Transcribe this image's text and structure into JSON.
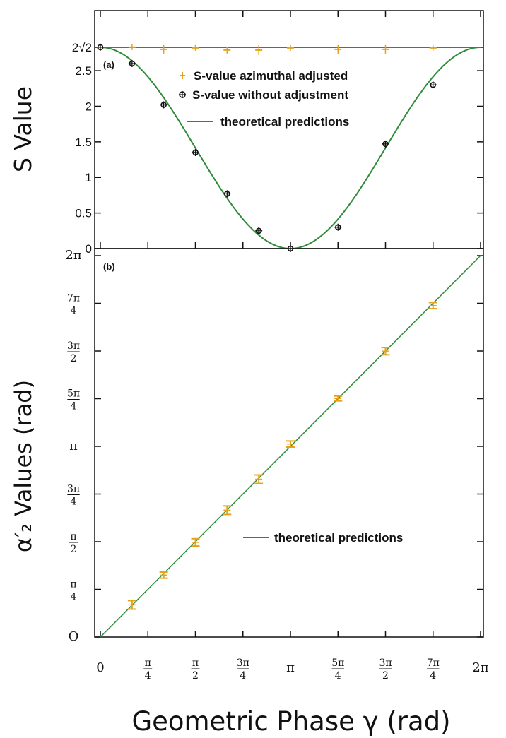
{
  "colors": {
    "theory": "#2e8b3a",
    "adjusted": "#e8a21a",
    "unadjusted": "#111111",
    "axis": "#111111"
  },
  "xlabel": "Geometric Phase γ (rad)",
  "x_tick_labels": [
    {
      "num": "0",
      "den": ""
    },
    {
      "num": "π",
      "den": "4"
    },
    {
      "num": "π",
      "den": "2"
    },
    {
      "num": "3π",
      "den": "4"
    },
    {
      "num": "π",
      "den": ""
    },
    {
      "num": "5π",
      "den": "4"
    },
    {
      "num": "3π",
      "den": "2"
    },
    {
      "num": "7π",
      "den": "4"
    },
    {
      "num": "2π",
      "den": ""
    }
  ],
  "chart_data": [
    {
      "type": "scatter",
      "panel_label": "(a)",
      "ylabel": "S  Value",
      "xlim": [
        0,
        6.2832
      ],
      "ylim": [
        0,
        2.8284
      ],
      "y_tick_labels": [
        "0",
        "0.5",
        "1",
        "1.5",
        "2",
        "2.5",
        "2√2"
      ],
      "y_tick_values": [
        0,
        0.5,
        1,
        1.5,
        2,
        2.5,
        2.8284
      ],
      "legend": {
        "position": "top-center",
        "entries": [
          {
            "marker": "plus",
            "label": "S-value  azimuthal adjusted"
          },
          {
            "marker": "circle-plus",
            "label": "S-value without adjustment"
          },
          {
            "marker": "line",
            "label": "theoretical predictions"
          }
        ]
      },
      "series": [
        {
          "name": "S-value  azimuthal adjusted",
          "x": [
            0,
            0.524,
            1.047,
            1.571,
            2.094,
            2.618,
            3.1416,
            3.927,
            4.712,
            5.498
          ],
          "y": [
            2.82,
            2.83,
            2.8,
            2.82,
            2.79,
            2.79,
            2.82,
            2.8,
            2.8,
            2.82
          ],
          "err": [
            0.01,
            0.01,
            0.03,
            0.01,
            0.02,
            0.04,
            0.01,
            0.03,
            0.03,
            0.01
          ]
        },
        {
          "name": "S-value without adjustment",
          "x": [
            0,
            0.524,
            1.047,
            1.571,
            2.094,
            2.618,
            3.1416,
            3.927,
            4.712,
            5.498
          ],
          "y": [
            2.83,
            2.6,
            2.02,
            1.35,
            0.77,
            0.25,
            0.0,
            0.3,
            1.47,
            2.3
          ],
          "err": [
            0.01,
            0.01,
            0.02,
            0.02,
            0.02,
            0.01,
            0.02,
            0.01,
            0.02,
            0.02
          ]
        },
        {
          "name": "theoretical predictions",
          "function": "2*sqrt(2)*cos^2(x/2)"
        }
      ]
    },
    {
      "type": "scatter",
      "panel_label": "(b)",
      "ylabel": "α′₂  Values (rad)",
      "xlim": [
        0,
        6.2832
      ],
      "ylim": [
        0,
        6.2832
      ],
      "y_tick_labels": [
        {
          "num": "O",
          "den": ""
        },
        {
          "num": "π",
          "den": "4"
        },
        {
          "num": "π",
          "den": "2"
        },
        {
          "num": "3π",
          "den": "4"
        },
        {
          "num": "π",
          "den": ""
        },
        {
          "num": "5π",
          "den": "4"
        },
        {
          "num": "3π",
          "den": "2"
        },
        {
          "num": "7π",
          "den": "4"
        },
        {
          "num": "2π",
          "den": ""
        }
      ],
      "legend": {
        "position": "center-right",
        "entries": [
          {
            "marker": "line",
            "label": "theoretical predictions"
          }
        ]
      },
      "series": [
        {
          "name": "",
          "x": [
            0.524,
            1.047,
            1.571,
            2.094,
            2.618,
            3.1416,
            3.927,
            4.712,
            5.498
          ],
          "y": [
            0.53,
            1.02,
            1.56,
            2.09,
            2.6,
            3.18,
            3.93,
            4.71,
            5.46
          ],
          "err": [
            0.07,
            0.05,
            0.06,
            0.07,
            0.07,
            0.05,
            0.04,
            0.06,
            0.05
          ]
        },
        {
          "name": "theoretical predictions",
          "function": "x"
        }
      ]
    }
  ]
}
